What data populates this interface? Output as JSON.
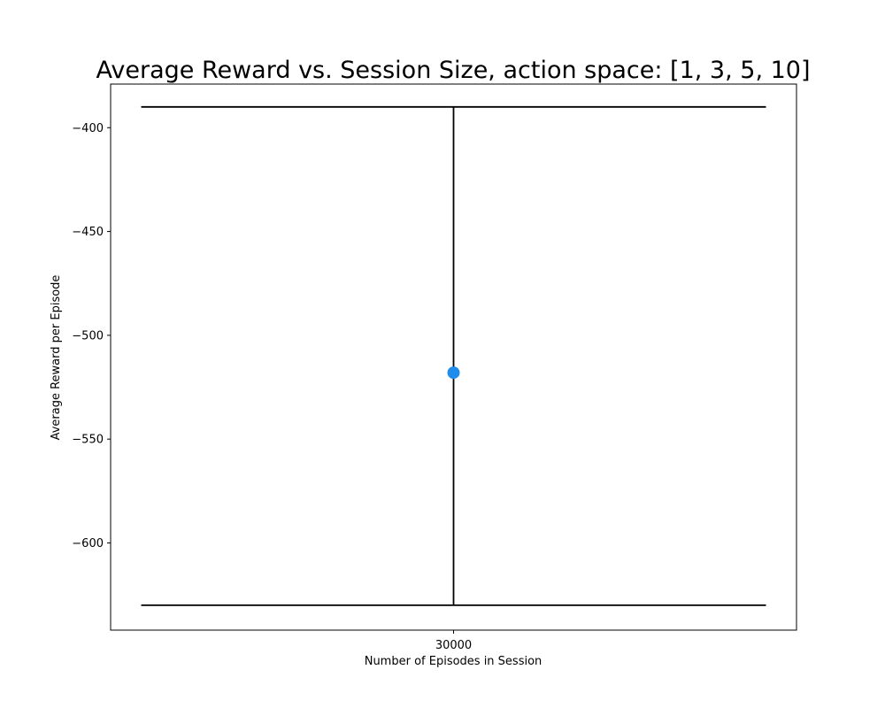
{
  "chart_data": {
    "type": "scatter",
    "title": "Average Reward vs. Session Size, action space: [1, 3, 5, 10]",
    "xlabel": "Number of Episodes in Session",
    "ylabel": "Average Reward per Episode",
    "categories": [
      "30000"
    ],
    "yticks": [
      -400,
      -450,
      -500,
      -550,
      -600
    ],
    "ytick_labels": [
      "−400",
      "−450",
      "−500",
      "−550",
      "−600"
    ],
    "ylim": [
      -642,
      -379
    ],
    "grid": false,
    "series": [
      {
        "values": [
          -518
        ],
        "error_low": [
          -630
        ],
        "error_high": [
          -390
        ],
        "color": "#1f8ceb",
        "errorbar_color": "#000000"
      }
    ]
  }
}
